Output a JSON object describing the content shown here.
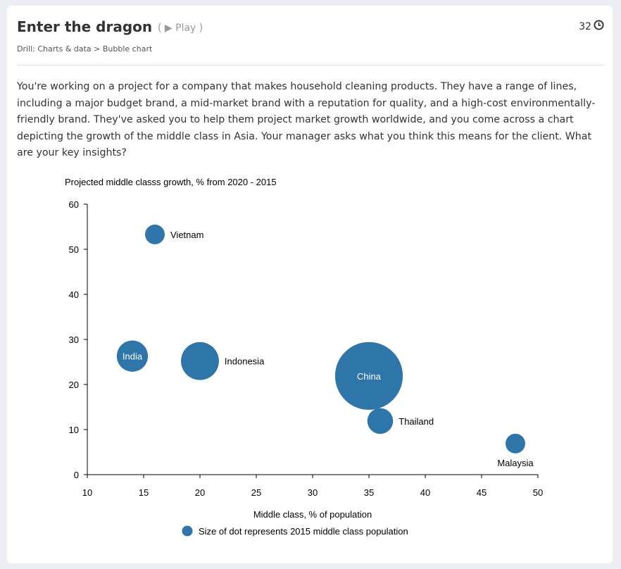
{
  "header": {
    "title": "Enter the dragon",
    "play_label": "( ▶ Play )",
    "timer": "32",
    "timer_icon": "clock-icon",
    "breadcrumb": "Drill: Charts & data > Bubble chart"
  },
  "prompt": "You're working on a project for a company that makes household cleaning products. They have a range of lines, including a major budget brand, a mid-market brand with a reputation for quality, and a high-cost environmentally-friendly brand. They've asked you to help them project market growth worldwide, and you come across a chart depicting the growth of the middle class in Asia. Your manager asks what you think this means for the client. What are your key insights?",
  "chart_data": {
    "type": "scatter",
    "title": "Projected middle classs growth, % from 2020 - 2015",
    "xlabel": "Middle class, % of population",
    "ylabel": "",
    "xlim": [
      10,
      50
    ],
    "ylim": [
      0,
      60
    ],
    "xticks": [
      10,
      15,
      20,
      25,
      30,
      35,
      40,
      45,
      50
    ],
    "yticks": [
      0,
      10,
      20,
      30,
      40,
      50,
      60
    ],
    "grid": false,
    "color": "#2e75a9",
    "legend": {
      "label": "Size of dot represents 2015 middle class population",
      "position": "bottom"
    },
    "points": [
      {
        "label": "Vietnam",
        "x": 16,
        "y": 53.3,
        "size": 1.0,
        "label_pos": "right"
      },
      {
        "label": "India",
        "x": 14,
        "y": 26.3,
        "size": 2.5,
        "label_pos": "inside"
      },
      {
        "label": "Indonesia",
        "x": 20,
        "y": 25.2,
        "size": 3.7,
        "label_pos": "right"
      },
      {
        "label": "China",
        "x": 35,
        "y": 21.9,
        "size": 11.8,
        "label_pos": "inside"
      },
      {
        "label": "Thailand",
        "x": 36,
        "y": 11.9,
        "size": 1.7,
        "label_pos": "right"
      },
      {
        "label": "Malaysia",
        "x": 48,
        "y": 6.9,
        "size": 1.0,
        "label_pos": "below"
      }
    ]
  }
}
